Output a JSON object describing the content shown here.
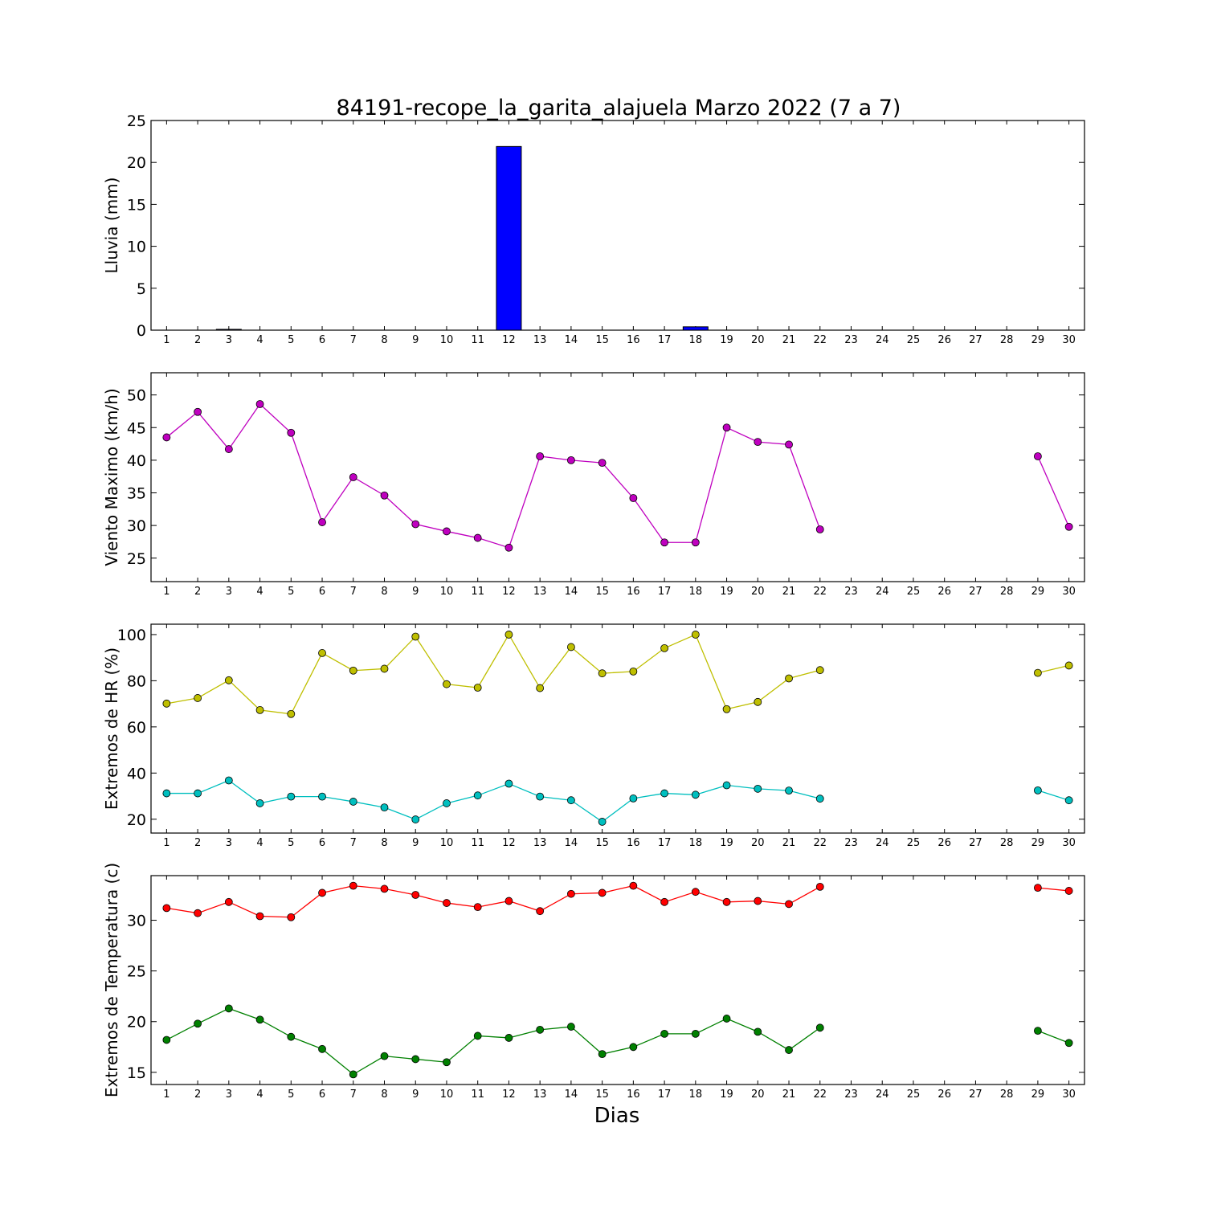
{
  "title": "84191-recope_la_garita_alajuela Marzo 2022  (7 a 7)",
  "xlabel": "Dias",
  "chart_data": [
    {
      "type": "bar",
      "ylabel": "Lluvia (mm)",
      "x": [
        1,
        2,
        3,
        4,
        5,
        6,
        7,
        8,
        9,
        10,
        11,
        12,
        13,
        14,
        15,
        16,
        17,
        18,
        19,
        20,
        21,
        22,
        23,
        24,
        25,
        26,
        27,
        28,
        29,
        30
      ],
      "ylim": [
        0,
        25
      ],
      "yticks": [
        0,
        5,
        10,
        15,
        20,
        25
      ],
      "series": [
        {
          "color": "#0000ff",
          "values": [
            0,
            0,
            0.1,
            0,
            0,
            0,
            0,
            0,
            0,
            0,
            0,
            21.9,
            0,
            0,
            0,
            0,
            0,
            0.4,
            0,
            0,
            0,
            0,
            0,
            0,
            0,
            0,
            0,
            0,
            0,
            0
          ]
        }
      ]
    },
    {
      "type": "line",
      "ylabel": "Viento Maximo (km/h)",
      "x": [
        1,
        2,
        3,
        4,
        5,
        6,
        7,
        8,
        9,
        10,
        11,
        12,
        13,
        14,
        15,
        16,
        17,
        18,
        19,
        20,
        21,
        22,
        23,
        24,
        25,
        26,
        27,
        28,
        29,
        30
      ],
      "ylim": [
        21.4,
        53.4
      ],
      "yticks": [
        25,
        30,
        35,
        40,
        45,
        50
      ],
      "series": [
        {
          "color": "#bf00bf",
          "values": [
            43.5,
            47.4,
            41.7,
            48.6,
            44.2,
            30.5,
            37.4,
            34.6,
            30.2,
            29.1,
            28.1,
            26.6,
            40.6,
            40.0,
            39.6,
            34.2,
            27.4,
            27.4,
            45.0,
            42.8,
            42.4,
            29.4,
            null,
            null,
            null,
            null,
            null,
            null,
            40.6,
            29.8
          ]
        }
      ]
    },
    {
      "type": "line",
      "ylabel": "Extremos de HR (%)",
      "x": [
        1,
        2,
        3,
        4,
        5,
        6,
        7,
        8,
        9,
        10,
        11,
        12,
        13,
        14,
        15,
        16,
        17,
        18,
        19,
        20,
        21,
        22,
        23,
        24,
        25,
        26,
        27,
        28,
        29,
        30
      ],
      "ylim": [
        14,
        104.5
      ],
      "yticks": [
        20,
        40,
        60,
        80,
        100
      ],
      "series": [
        {
          "color": "#bfbf00",
          "values": [
            70.1,
            72.5,
            80.2,
            67.3,
            65.6,
            92.0,
            84.4,
            85.2,
            99.1,
            78.5,
            77.0,
            100.0,
            76.8,
            94.6,
            83.2,
            84.0,
            94.1,
            100.0,
            67.7,
            70.8,
            81.0,
            84.6,
            null,
            null,
            null,
            null,
            null,
            null,
            83.4,
            86.6
          ]
        },
        {
          "color": "#00bfbf",
          "values": [
            31.2,
            31.2,
            36.8,
            26.9,
            29.8,
            29.8,
            27.6,
            25.1,
            19.9,
            26.9,
            30.3,
            35.4,
            29.8,
            28.2,
            18.9,
            29.0,
            31.2,
            30.6,
            34.7,
            33.2,
            32.4,
            28.9,
            null,
            null,
            null,
            null,
            null,
            null,
            32.5,
            28.2
          ]
        }
      ]
    },
    {
      "type": "line",
      "ylabel": "Extremos de Temperatura (c)",
      "x": [
        1,
        2,
        3,
        4,
        5,
        6,
        7,
        8,
        9,
        10,
        11,
        12,
        13,
        14,
        15,
        16,
        17,
        18,
        19,
        20,
        21,
        22,
        23,
        24,
        25,
        26,
        27,
        28,
        29,
        30
      ],
      "ylim": [
        13.8,
        34.4
      ],
      "yticks": [
        15,
        20,
        25,
        30
      ],
      "series": [
        {
          "color": "#ff0000",
          "values": [
            31.2,
            30.7,
            31.8,
            30.4,
            30.3,
            32.7,
            33.4,
            33.1,
            32.5,
            31.7,
            31.3,
            31.9,
            30.9,
            32.6,
            32.7,
            33.4,
            31.8,
            32.8,
            31.8,
            31.9,
            31.6,
            33.3,
            null,
            null,
            null,
            null,
            null,
            null,
            33.2,
            32.9
          ]
        },
        {
          "color": "#008000",
          "values": [
            18.2,
            19.8,
            21.3,
            20.2,
            18.5,
            17.3,
            14.8,
            16.6,
            16.3,
            16.0,
            18.6,
            18.4,
            19.2,
            19.5,
            16.8,
            17.5,
            18.8,
            18.8,
            20.3,
            19.0,
            17.2,
            19.4,
            null,
            null,
            null,
            null,
            null,
            null,
            19.1,
            17.9
          ]
        }
      ]
    }
  ]
}
